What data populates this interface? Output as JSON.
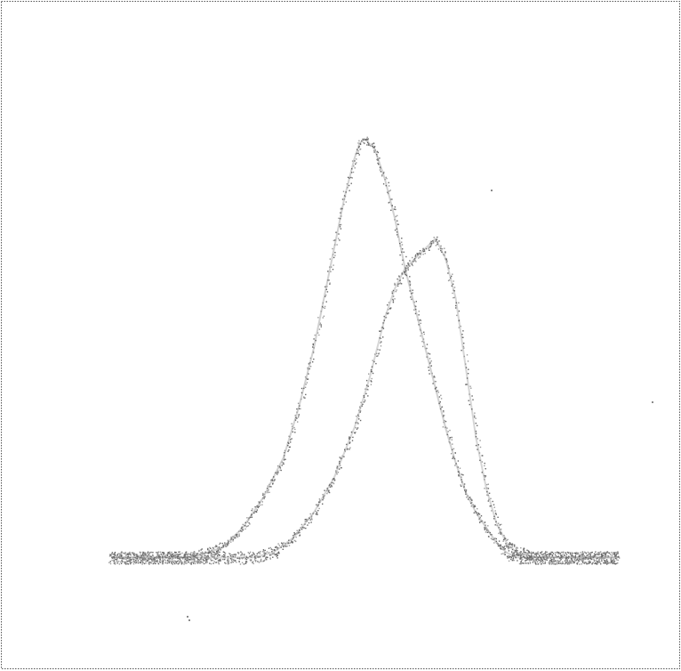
{
  "chart_data": {
    "type": "line",
    "title": "",
    "xlabel": "",
    "ylabel": "",
    "grid": false,
    "legend": "none",
    "xlim": [
      0,
      100
    ],
    "ylim": [
      0,
      100
    ],
    "series": [
      {
        "color": "#7a7a7a",
        "x": [
          0,
          8,
          16,
          22,
          26,
          30,
          34,
          37,
          40,
          42,
          44,
          46,
          48,
          49,
          50,
          52,
          54,
          56,
          58,
          60,
          62,
          64,
          66,
          68,
          70,
          72,
          74,
          76,
          78,
          80,
          84,
          90,
          100
        ],
        "y": [
          6,
          6,
          6,
          8,
          12,
          18,
          26,
          36,
          48,
          58,
          68,
          78,
          86,
          89,
          90,
          88,
          82,
          74,
          64,
          56,
          48,
          40,
          32,
          25,
          19,
          15,
          12,
          9,
          7,
          6,
          6,
          6,
          6
        ]
      },
      {
        "color": "#8a8a8a",
        "x": [
          0,
          10,
          20,
          28,
          32,
          36,
          40,
          44,
          48,
          51,
          54,
          56,
          58,
          60,
          62,
          64,
          66,
          68,
          70,
          72,
          74,
          76,
          78,
          80,
          84,
          90,
          100
        ],
        "y": [
          6,
          6,
          6,
          6,
          7,
          10,
          15,
          22,
          32,
          42,
          54,
          60,
          64,
          66,
          68,
          70,
          66,
          58,
          44,
          30,
          20,
          13,
          9,
          7,
          6,
          6,
          6
        ]
      }
    ]
  }
}
